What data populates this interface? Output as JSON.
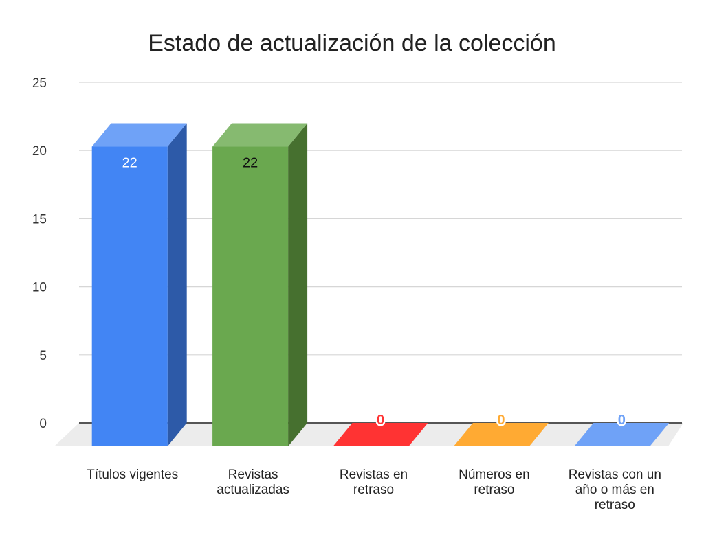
{
  "chart_data": {
    "type": "bar",
    "title": "Estado de actualización de la colección",
    "categories": [
      [
        "Títulos vigentes"
      ],
      [
        "Revistas",
        "actualizadas"
      ],
      [
        "Revistas en",
        "retraso"
      ],
      [
        "Números en",
        "retraso"
      ],
      [
        "Revistas con un",
        "año o más en",
        "retraso"
      ]
    ],
    "values": [
      22,
      22,
      0,
      0,
      0
    ],
    "value_labels": [
      "22",
      "22",
      "0",
      "0",
      "0"
    ],
    "yticks": [
      "0",
      "5",
      "10",
      "15",
      "20",
      "25"
    ],
    "ylim": [
      0,
      25
    ],
    "grid": true,
    "legend": false,
    "colors": [
      {
        "front": "#4285F4",
        "side": "#2D5AA8",
        "top": "#6FA2F7",
        "label": "#ffffff"
      },
      {
        "front": "#6AA84F",
        "side": "#46702F",
        "top": "#86BA70",
        "label": "#111111"
      },
      {
        "front": "#FF3333",
        "side": "#B02222",
        "top": "#FF3333",
        "label": "#FF3333"
      },
      {
        "front": "#FFAA33",
        "side": "#B07520",
        "top": "#FFAA33",
        "label": "#FFAA33"
      },
      {
        "front": "#6FA2F7",
        "side": "#3F6FC0",
        "top": "#6FA2F7",
        "label": "#6FA2F7"
      }
    ]
  }
}
